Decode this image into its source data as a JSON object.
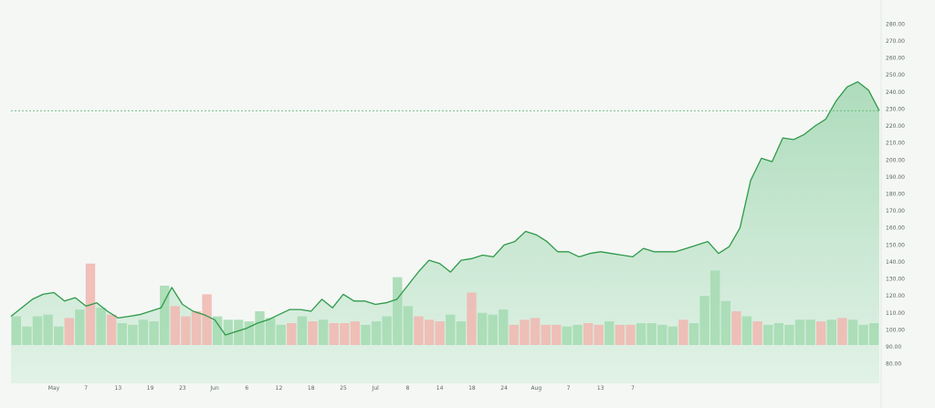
{
  "chart_data": {
    "type": "area",
    "title": "",
    "xlabel": "",
    "ylabel": "",
    "ylim": [
      75,
      285
    ],
    "y_ticks": [
      "280.00",
      "270.00",
      "260.00",
      "250.00",
      "240.00",
      "230.00",
      "220.00",
      "210.00",
      "200.00",
      "190.00",
      "180.00",
      "170.00",
      "160.00",
      "150.00",
      "140.00",
      "130.00",
      "120.00",
      "110.00",
      "100.00",
      "90.00",
      "80.00"
    ],
    "x_ticks": [
      "May",
      "7",
      "13",
      "19",
      "23",
      "Jun",
      "6",
      "12",
      "18",
      "25",
      "Jul",
      "8",
      "14",
      "18",
      "24",
      "Aug",
      "7",
      "13",
      "7"
    ],
    "x_tick_index": [
      4,
      7,
      10,
      13,
      16,
      19,
      22,
      25,
      28,
      31,
      34,
      37,
      40,
      43,
      46,
      49,
      52,
      55,
      58
    ],
    "reference_line": 229,
    "grid": false,
    "colors": {
      "line": "#2f9a49",
      "area_top": "#aedcbc",
      "area_bottom": "#e2f2e7",
      "volume_up": "#a6dcb4",
      "volume_down": "#f0b9b3",
      "reference": "#62b97c"
    },
    "price": [
      108,
      113,
      118,
      121,
      122,
      117,
      119,
      114,
      116,
      111,
      107,
      108,
      109,
      111,
      113,
      125,
      115,
      111,
      109,
      106,
      97,
      99,
      101,
      104,
      106,
      109,
      112,
      112,
      111,
      118,
      113,
      121,
      117,
      117,
      115,
      116,
      118,
      126,
      134,
      141,
      139,
      134,
      141,
      142,
      144,
      143,
      150,
      152,
      158,
      156,
      152,
      146,
      146,
      143,
      145,
      146,
      145,
      144,
      143,
      148,
      146,
      146,
      146,
      148,
      150,
      152,
      145,
      149,
      160,
      188,
      201,
      199,
      213,
      212,
      215,
      220,
      224,
      235,
      243,
      246,
      241,
      229
    ],
    "volume": [
      {
        "v": 108,
        "up": true
      },
      {
        "v": 102,
        "up": true
      },
      {
        "v": 108,
        "up": true
      },
      {
        "v": 109,
        "up": true
      },
      {
        "v": 102,
        "up": true
      },
      {
        "v": 107,
        "up": false
      },
      {
        "v": 112,
        "up": true
      },
      {
        "v": 139,
        "up": false
      },
      {
        "v": 113,
        "up": true
      },
      {
        "v": 109,
        "up": false
      },
      {
        "v": 104,
        "up": true
      },
      {
        "v": 103,
        "up": true
      },
      {
        "v": 106,
        "up": true
      },
      {
        "v": 105,
        "up": true
      },
      {
        "v": 126,
        "up": true
      },
      {
        "v": 114,
        "up": false
      },
      {
        "v": 108,
        "up": false
      },
      {
        "v": 111,
        "up": false
      },
      {
        "v": 121,
        "up": false
      },
      {
        "v": 108,
        "up": true
      },
      {
        "v": 106,
        "up": true
      },
      {
        "v": 106,
        "up": true
      },
      {
        "v": 105,
        "up": true
      },
      {
        "v": 111,
        "up": true
      },
      {
        "v": 107,
        "up": true
      },
      {
        "v": 103,
        "up": true
      },
      {
        "v": 104,
        "up": false
      },
      {
        "v": 108,
        "up": true
      },
      {
        "v": 105,
        "up": false
      },
      {
        "v": 106,
        "up": true
      },
      {
        "v": 104,
        "up": false
      },
      {
        "v": 104,
        "up": false
      },
      {
        "v": 105,
        "up": false
      },
      {
        "v": 103,
        "up": true
      },
      {
        "v": 105,
        "up": true
      },
      {
        "v": 108,
        "up": true
      },
      {
        "v": 131,
        "up": true
      },
      {
        "v": 114,
        "up": true
      },
      {
        "v": 108,
        "up": false
      },
      {
        "v": 106,
        "up": false
      },
      {
        "v": 105,
        "up": false
      },
      {
        "v": 109,
        "up": true
      },
      {
        "v": 105,
        "up": true
      },
      {
        "v": 122,
        "up": false
      },
      {
        "v": 110,
        "up": true
      },
      {
        "v": 109,
        "up": true
      },
      {
        "v": 112,
        "up": true
      },
      {
        "v": 103,
        "up": false
      },
      {
        "v": 106,
        "up": false
      },
      {
        "v": 107,
        "up": false
      },
      {
        "v": 103,
        "up": false
      },
      {
        "v": 103,
        "up": false
      },
      {
        "v": 102,
        "up": true
      },
      {
        "v": 103,
        "up": true
      },
      {
        "v": 104,
        "up": false
      },
      {
        "v": 103,
        "up": false
      },
      {
        "v": 105,
        "up": true
      },
      {
        "v": 103,
        "up": false
      },
      {
        "v": 103,
        "up": false
      },
      {
        "v": 104,
        "up": true
      },
      {
        "v": 104,
        "up": true
      },
      {
        "v": 103,
        "up": true
      },
      {
        "v": 102,
        "up": true
      },
      {
        "v": 106,
        "up": false
      },
      {
        "v": 104,
        "up": true
      },
      {
        "v": 120,
        "up": true
      },
      {
        "v": 135,
        "up": true
      },
      {
        "v": 117,
        "up": true
      },
      {
        "v": 111,
        "up": false
      },
      {
        "v": 108,
        "up": true
      },
      {
        "v": 105,
        "up": false
      },
      {
        "v": 103,
        "up": true
      },
      {
        "v": 104,
        "up": true
      },
      {
        "v": 103,
        "up": true
      },
      {
        "v": 106,
        "up": true
      },
      {
        "v": 106,
        "up": true
      },
      {
        "v": 105,
        "up": false
      },
      {
        "v": 106,
        "up": true
      },
      {
        "v": 107,
        "up": false
      },
      {
        "v": 106,
        "up": true
      },
      {
        "v": 103,
        "up": true
      },
      {
        "v": 104,
        "up": true
      }
    ]
  }
}
